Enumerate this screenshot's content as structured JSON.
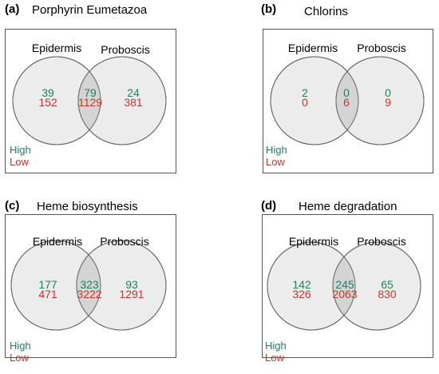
{
  "colors": {
    "high": "#1f8060",
    "low": "#c0392b",
    "circle_fill": "#ececec",
    "overlap_fill": "#d4d4d4",
    "stroke": "#666666"
  },
  "legend": {
    "high": "High",
    "low": "Low"
  },
  "panels": [
    {
      "label": "(a)",
      "title": "Porphyrin Eumetazoa",
      "set_left": "Epidermis",
      "set_right": "Proboscis",
      "left": {
        "high": "39",
        "low": "152"
      },
      "both": {
        "high": "79",
        "low": "1129"
      },
      "right": {
        "high": "24",
        "low": "381"
      }
    },
    {
      "label": "(b)",
      "title": "Chlorins",
      "set_left": "Epidermis",
      "set_right": "Proboscis",
      "left": {
        "high": "2",
        "low": "0"
      },
      "both": {
        "high": "0",
        "low": "6"
      },
      "right": {
        "high": "0",
        "low": "9"
      }
    },
    {
      "label": "(c)",
      "title": "Heme biosynthesis",
      "set_left": "Epidermis",
      "set_right": "Proboscis",
      "left": {
        "high": "177",
        "low": "471"
      },
      "both": {
        "high": "323",
        "low": "3222"
      },
      "right": {
        "high": "93",
        "low": "1291"
      }
    },
    {
      "label": "(d)",
      "title": "Heme degradation",
      "set_left": "Epidermis",
      "set_right": "Proboscis",
      "left": {
        "high": "142",
        "low": "326"
      },
      "both": {
        "high": "245",
        "low": "2063"
      },
      "right": {
        "high": "65",
        "low": "830"
      }
    }
  ]
}
